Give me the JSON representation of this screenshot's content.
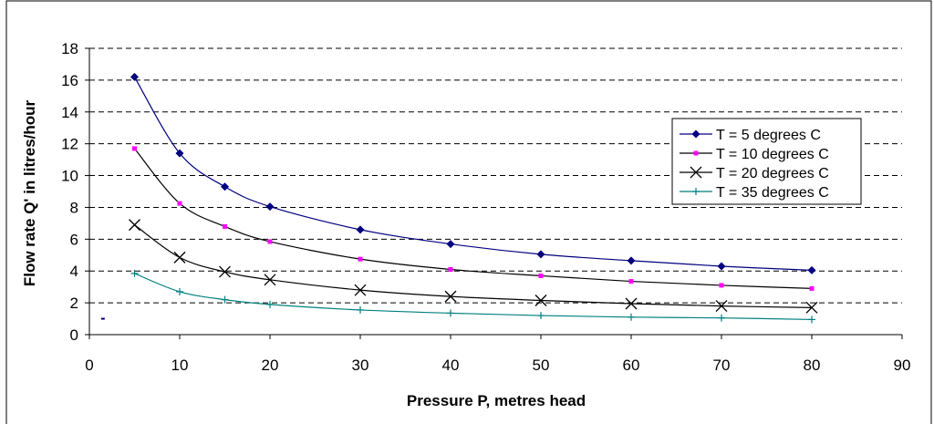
{
  "chart_data": {
    "type": "line",
    "title": "",
    "xlabel": "Pressure P, metres head",
    "ylabel": "Flow rate Q' in litres/hour",
    "xlim": [
      0,
      90
    ],
    "ylim": [
      0,
      18
    ],
    "x_ticks": [
      "0",
      "10",
      "20",
      "30",
      "40",
      "50",
      "60",
      "70",
      "80",
      "90"
    ],
    "y_ticks": [
      "0",
      "2",
      "4",
      "6",
      "8",
      "10",
      "12",
      "14",
      "16",
      "18"
    ],
    "grid": "horizontal-dashed",
    "legend_position": "right",
    "x": [
      5,
      10,
      15,
      20,
      30,
      40,
      50,
      60,
      70,
      80
    ],
    "series": [
      {
        "name": "T = 5 degrees C",
        "color": "#000080",
        "marker": "diamond",
        "values": [
          16.2,
          11.4,
          9.3,
          8.05,
          6.6,
          5.7,
          5.05,
          4.65,
          4.3,
          4.05
        ]
      },
      {
        "name": "T = 10 degrees C",
        "color": "#ff00ff",
        "line_color": "#000000",
        "marker": "square",
        "values": [
          11.7,
          8.25,
          6.8,
          5.85,
          4.75,
          4.1,
          3.7,
          3.35,
          3.1,
          2.9
        ]
      },
      {
        "name": "T = 20 degrees C",
        "color": "#000000",
        "marker": "x",
        "values": [
          6.9,
          4.85,
          3.95,
          3.45,
          2.8,
          2.4,
          2.15,
          1.95,
          1.8,
          1.7
        ]
      },
      {
        "name": "T = 35 degrees C",
        "color": "#008080",
        "marker": "plus",
        "values": [
          3.85,
          2.7,
          2.2,
          1.9,
          1.55,
          1.35,
          1.2,
          1.1,
          1.05,
          0.95
        ]
      }
    ],
    "stray_marks": [
      {
        "x": 1.5,
        "y": 1.0,
        "color": "#000080"
      }
    ]
  }
}
